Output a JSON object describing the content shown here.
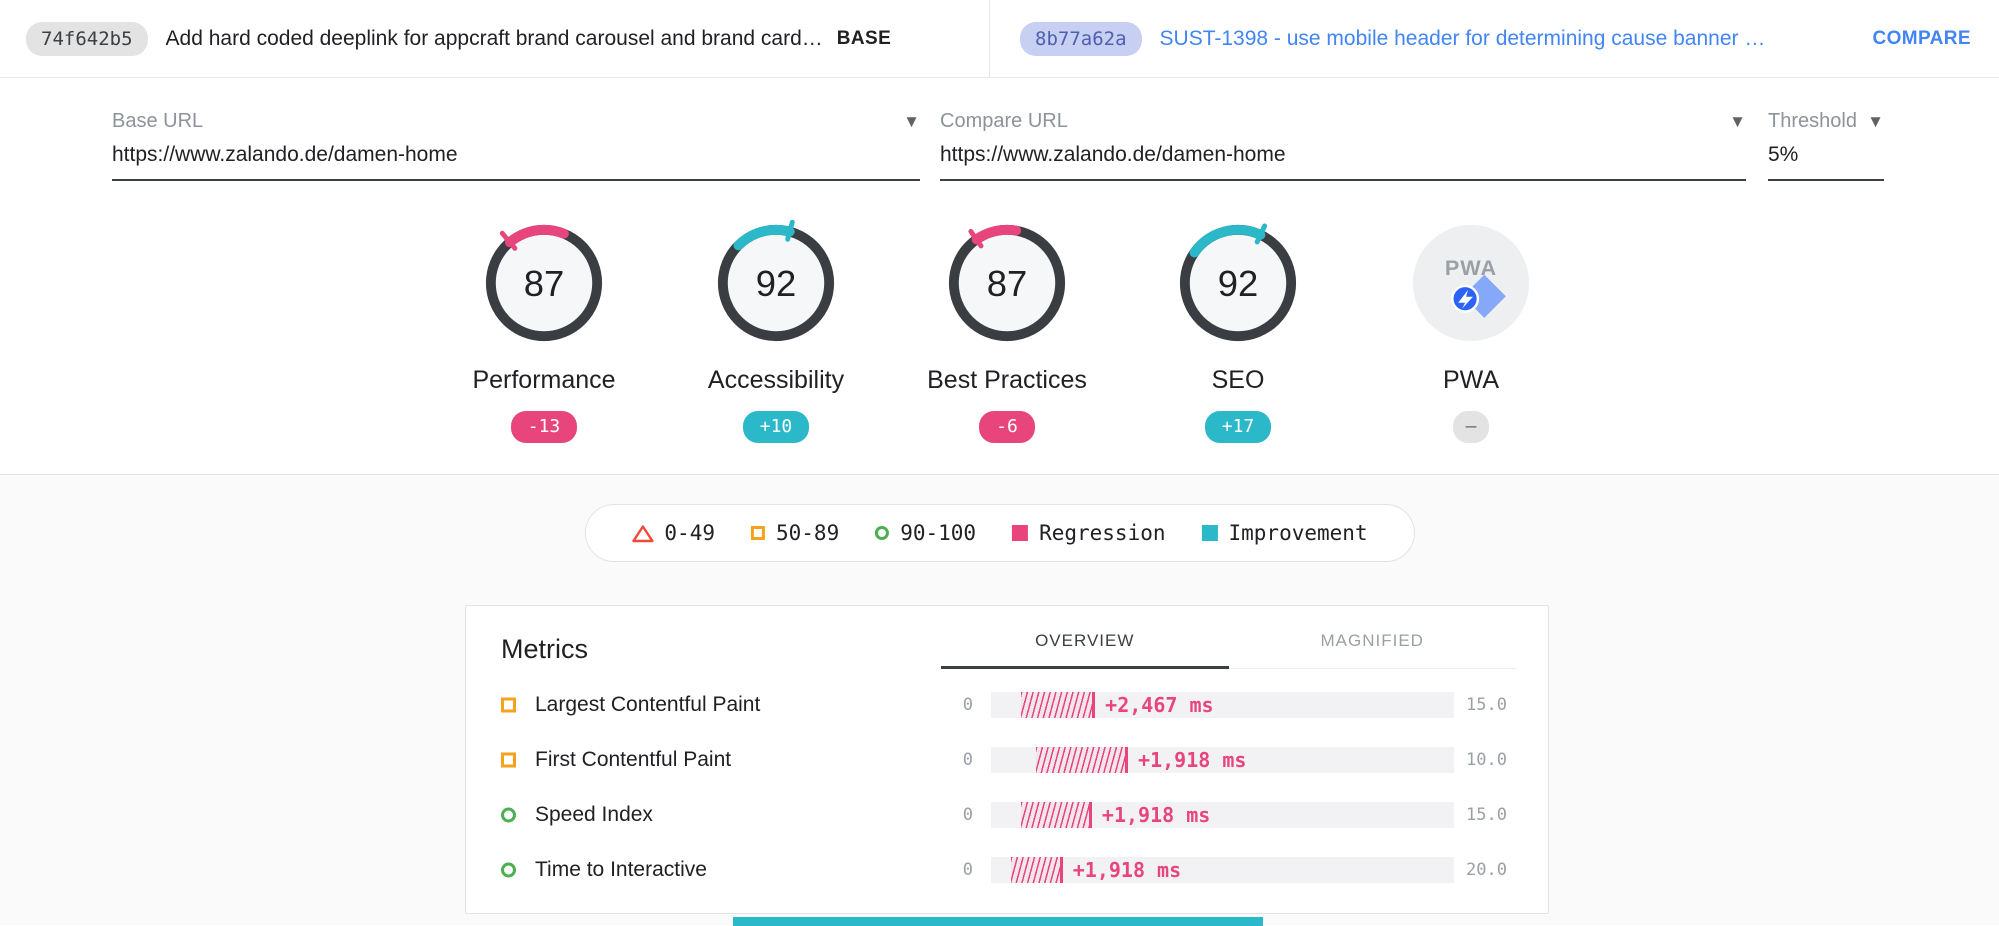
{
  "colors": {
    "pink": "#e8457d",
    "teal": "#2bb8c9",
    "link-blue": "#4285f4",
    "orange": "#f5a31a",
    "green": "#4caf50",
    "red": "#ef4a3a"
  },
  "header": {
    "base": {
      "hash": "74f642b5",
      "title": "Add hard coded deeplink for appcraft brand carousel and brand card…",
      "tag": "BASE"
    },
    "compare": {
      "hash": "8b77a62a",
      "title": "SUST-1398 - use mobile header for determining cause banner …",
      "tag": "COMPARE"
    }
  },
  "form": {
    "base_url": {
      "label": "Base URL",
      "value": "https://www.zalando.de/damen-home"
    },
    "compare_url": {
      "label": "Compare URL",
      "value": "https://www.zalando.de/damen-home"
    },
    "threshold": {
      "label": "Threshold",
      "value": "5%"
    }
  },
  "scores": [
    {
      "name": "Performance",
      "value": "87",
      "delta": "-13",
      "direction": "regression"
    },
    {
      "name": "Accessibility",
      "value": "92",
      "delta": "+10",
      "direction": "improvement"
    },
    {
      "name": "Best Practices",
      "value": "87",
      "delta": "-6",
      "direction": "regression"
    },
    {
      "name": "SEO",
      "value": "92",
      "delta": "+17",
      "direction": "improvement"
    },
    {
      "name": "PWA",
      "value": "PWA",
      "delta": "–",
      "direction": "neutral"
    }
  ],
  "legend": {
    "items": [
      {
        "icon": "triangle-red",
        "label": "0-49"
      },
      {
        "icon": "square-orange",
        "label": "50-89"
      },
      {
        "icon": "circle-green",
        "label": "90-100"
      },
      {
        "icon": "square-pink",
        "label": "Regression"
      },
      {
        "icon": "square-teal",
        "label": "Improvement"
      }
    ]
  },
  "metrics": {
    "title": "Metrics",
    "tabs": [
      {
        "label": "OVERVIEW"
      },
      {
        "label": "MAGNIFIED"
      }
    ],
    "rows": [
      {
        "icon": "square-orange",
        "name": "Largest Contentful Paint",
        "min": "0",
        "delta": "+2,467 ms",
        "max": "15.0",
        "bar": {
          "start_pct": 6.5,
          "width_pct": 16.0
        }
      },
      {
        "icon": "square-orange",
        "name": "First Contentful Paint",
        "min": "0",
        "delta": "+1,918 ms",
        "max": "10.0",
        "bar": {
          "start_pct": 9.7,
          "width_pct": 19.9
        }
      },
      {
        "icon": "circle-green",
        "name": "Speed Index",
        "min": "0",
        "delta": "+1,918 ms",
        "max": "15.0",
        "bar": {
          "start_pct": 6.5,
          "width_pct": 15.3
        }
      },
      {
        "icon": "circle-green",
        "name": "Time to Interactive",
        "min": "0",
        "delta": "+1,918 ms",
        "max": "20.0",
        "bar": {
          "start_pct": 4.3,
          "width_pct": 11.2
        }
      }
    ]
  }
}
